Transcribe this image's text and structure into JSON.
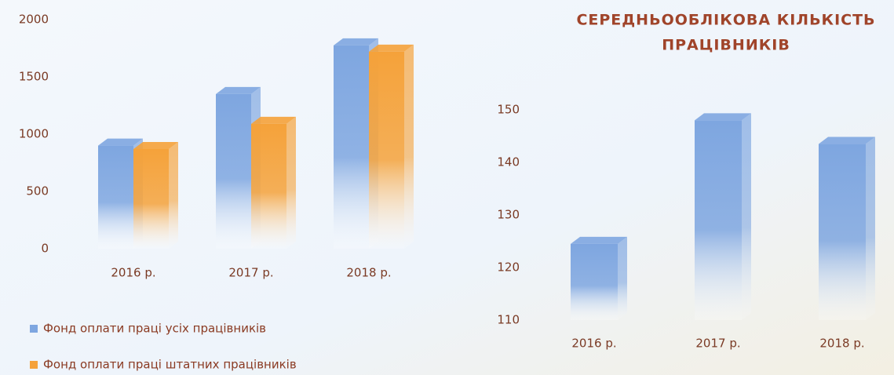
{
  "charts": [
    {
      "type": "bar",
      "categories": [
        "2016 р.",
        "2017 р.",
        "2018 р."
      ],
      "series": [
        {
          "name": "Фонд оплати праці усіх працівників",
          "color": "#7ea6e0",
          "values": [
            900,
            1350,
            1775
          ]
        },
        {
          "name": "Фонд оплати праці штатних працівників",
          "color": "#f5a23a",
          "values": [
            870,
            1090,
            1720
          ]
        }
      ],
      "ylim": [
        0,
        2000
      ],
      "yticks": [
        0,
        500,
        1000,
        1500,
        2000
      ],
      "legend": "bottom"
    },
    {
      "type": "bar",
      "title": "СЕРЕДНЬООБЛІКОВА КІЛЬКІСТЬ ПРАЦІВНИКІВ",
      "categories": [
        "2016 р.",
        "2017 р.",
        "2018 р."
      ],
      "values": [
        124.5,
        148,
        143.5
      ],
      "color": "#7ea6e0",
      "ylim": [
        110,
        150
      ],
      "yticks": [
        110,
        120,
        130,
        140,
        150
      ]
    }
  ]
}
